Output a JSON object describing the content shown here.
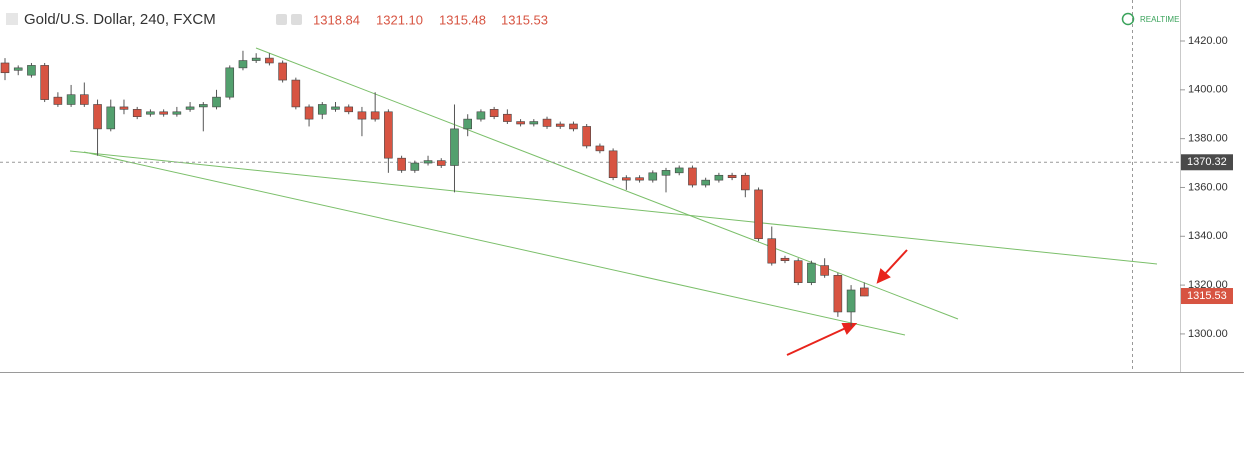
{
  "chart_data": {
    "type": "candlestick",
    "title": "Gold/U.S. Dollar, 240, FXCM",
    "header_values": [
      {
        "value": 1318.84,
        "label": "1318.84"
      },
      {
        "value": 1321.1,
        "label": "1321.10"
      },
      {
        "value": 1315.48,
        "label": "1315.48"
      },
      {
        "value": 1315.53,
        "label": "1315.53"
      }
    ],
    "status": "REALTIME",
    "up_color": "#53a06e",
    "down_color": "#d75442",
    "ylim": [
      1284.4,
      1436.8
    ],
    "yticks": [
      {
        "value": 1300,
        "label": "1300.00"
      },
      {
        "value": 1320,
        "label": "1320.00"
      },
      {
        "value": 1340,
        "label": "1340.00"
      },
      {
        "value": 1360,
        "label": "1360.00"
      },
      {
        "value": 1380,
        "label": "1380.00"
      },
      {
        "value": 1400,
        "label": "1400.00"
      },
      {
        "value": 1420,
        "label": "1420.00"
      }
    ],
    "crosshair_price": 1370.32,
    "last_price": 1315.53,
    "open": [
      1411,
      1408,
      1406,
      1410,
      1397,
      1394,
      1398,
      1394,
      1384,
      1393,
      1392,
      1390,
      1391,
      1390,
      1392,
      1393,
      1393,
      1397,
      1409,
      1412,
      1413,
      1411,
      1404,
      1393,
      1390,
      1392,
      1393,
      1391,
      1391,
      1391,
      1372,
      1367,
      1370,
      1371,
      1369,
      1384,
      1388,
      1392,
      1390,
      1387,
      1386,
      1388,
      1386,
      1386,
      1385,
      1377,
      1375,
      1364,
      1364,
      1363,
      1365,
      1366,
      1368,
      1361,
      1363,
      1365,
      1365,
      1359,
      1339,
      1331,
      1330,
      1321,
      1328,
      1324,
      1309,
      1318.84
    ],
    "high": [
      1413,
      1410,
      1411,
      1411,
      1399,
      1402,
      1403,
      1396,
      1396,
      1396,
      1393,
      1392,
      1392,
      1393,
      1395,
      1395,
      1400,
      1410,
      1416,
      1415,
      1415,
      1412,
      1405,
      1394,
      1395,
      1395,
      1394,
      1393,
      1399,
      1392,
      1373,
      1371,
      1373,
      1372,
      1394,
      1390,
      1392,
      1393,
      1392,
      1388,
      1388,
      1389,
      1387,
      1387,
      1386,
      1378,
      1376,
      1365,
      1365,
      1367,
      1368,
      1369,
      1369,
      1364,
      1366,
      1366,
      1366,
      1360,
      1344,
      1332,
      1331,
      1330,
      1331,
      1325,
      1320,
      1321.1
    ],
    "low": [
      1404,
      1406,
      1405,
      1395,
      1393,
      1393,
      1393,
      1373,
      1383,
      1390,
      1388,
      1389,
      1389,
      1389,
      1391,
      1383,
      1392,
      1396,
      1408,
      1411,
      1410,
      1403,
      1392,
      1385,
      1388,
      1391,
      1390,
      1381,
      1387,
      1366,
      1366,
      1366,
      1369,
      1368,
      1358,
      1381,
      1387,
      1388,
      1386,
      1385,
      1385,
      1384,
      1384,
      1383,
      1376,
      1374,
      1363,
      1359,
      1362,
      1362,
      1358,
      1365,
      1360,
      1360,
      1362,
      1363,
      1356,
      1338,
      1328,
      1329,
      1320,
      1320,
      1323,
      1307,
      1303,
      1315.48
    ],
    "close": [
      1407,
      1409,
      1410,
      1396,
      1394,
      1398,
      1394,
      1384,
      1393,
      1392,
      1389,
      1391,
      1390,
      1391,
      1393,
      1394,
      1397,
      1409,
      1412,
      1413,
      1411,
      1404,
      1393,
      1388,
      1394,
      1393,
      1391,
      1388,
      1388,
      1372,
      1367,
      1370,
      1371,
      1369,
      1384,
      1388,
      1391,
      1389,
      1387,
      1386,
      1387,
      1385,
      1385,
      1384,
      1377,
      1375,
      1364,
      1363,
      1363,
      1366,
      1367,
      1368,
      1361,
      1363,
      1365,
      1364,
      1359,
      1339,
      1329,
      1330,
      1321,
      1329,
      1324,
      1309,
      1318,
      1315.53
    ]
  }
}
